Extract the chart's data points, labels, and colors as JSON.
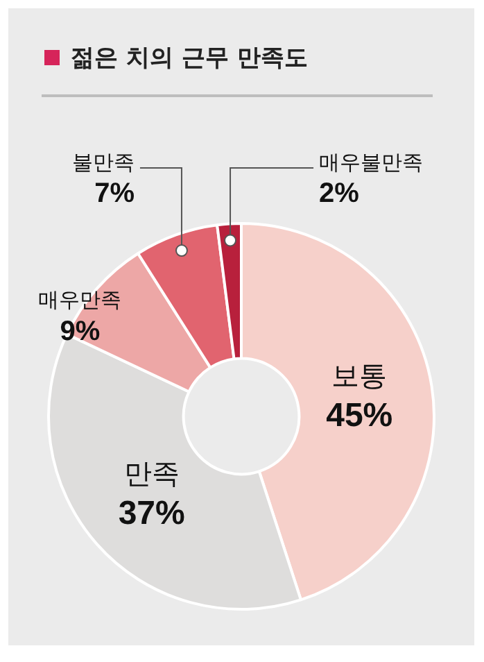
{
  "chart_data": {
    "type": "donut",
    "title": "젊은 치의 근무 만족도",
    "categories": [
      "보통",
      "만족",
      "매우만족",
      "불만족",
      "매우불만족"
    ],
    "values": [
      45,
      37,
      9,
      7,
      2
    ],
    "colors": [
      "#f6d0ca",
      "#dedddc",
      "#eda7a6",
      "#e1646f",
      "#b8203c"
    ],
    "value_labels": [
      "45%",
      "37%",
      "9%",
      "7%",
      "2%"
    ]
  }
}
